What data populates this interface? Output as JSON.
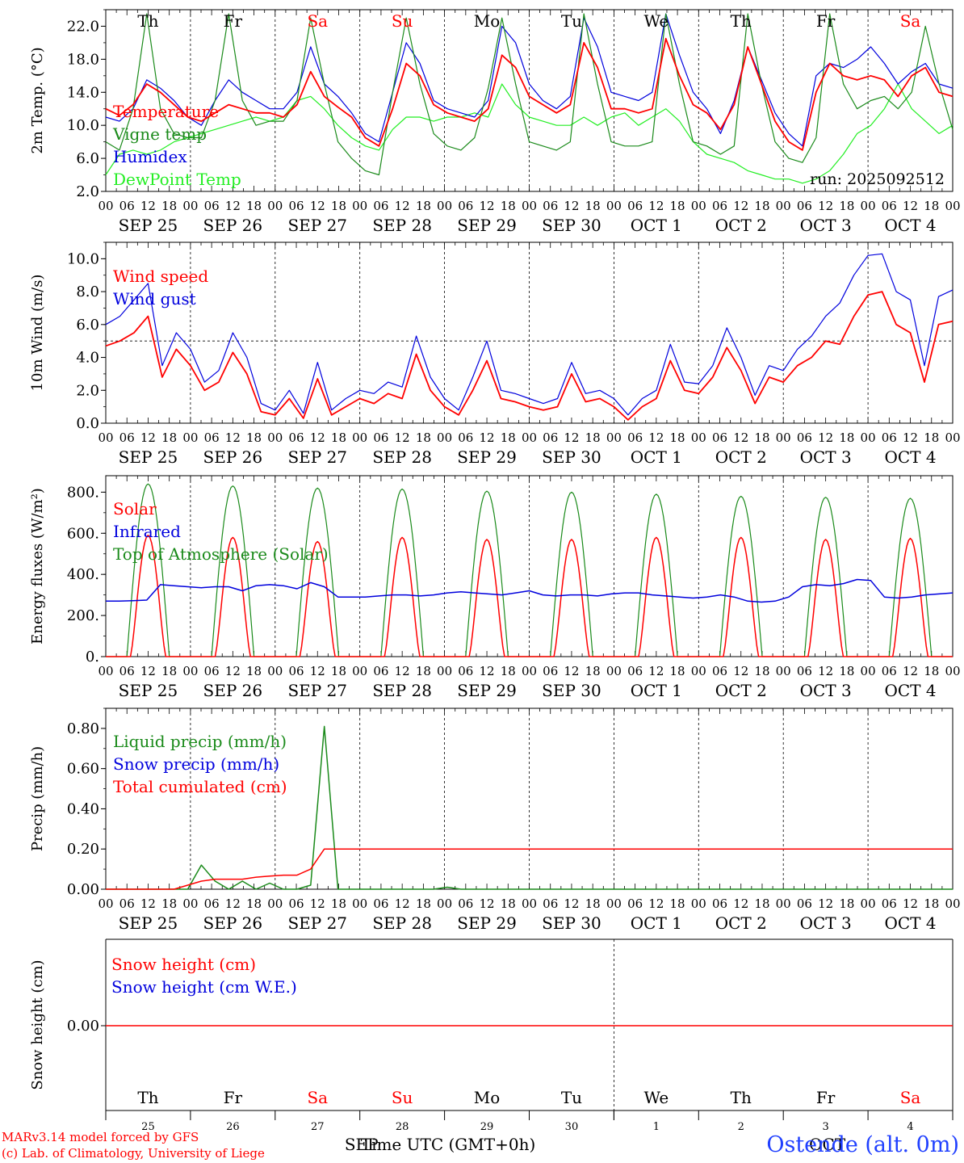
{
  "chart_data": [
    {
      "type": "line",
      "ylabel": "2m Temp. (°C)",
      "ylim": [
        2,
        24
      ],
      "yticks": [
        "2.0",
        "6.0",
        "10.0",
        "14.0",
        "18.0",
        "22.0"
      ],
      "ytick_values": [
        2,
        6,
        10,
        14,
        18,
        22
      ],
      "run_label": "run: 2025092512",
      "legend_position": "left",
      "step_hours": 6,
      "series": [
        {
          "name": "Temperature",
          "color": "#ff0000",
          "values": [
            12,
            11.2,
            12.5,
            15,
            14,
            12.5,
            11,
            10.5,
            11.5,
            12.5,
            12,
            11.5,
            11.5,
            11,
            12.5,
            16.5,
            13.5,
            12.2,
            11,
            8.5,
            7.5,
            12,
            17.5,
            16,
            12.5,
            11.5,
            11,
            10.5,
            12,
            18.5,
            17,
            13.5,
            12.5,
            11.5,
            12.5,
            20,
            17,
            12,
            12,
            11.5,
            12,
            20.5,
            16,
            12.5,
            11.5,
            9.5,
            12.5,
            19.5,
            15,
            10.5,
            8,
            7,
            14,
            17.5,
            16,
            15.5,
            16,
            15.5,
            13.5,
            16,
            17,
            14,
            13.5
          ]
        },
        {
          "name": "Vigne temp",
          "color": "#1a8a1a",
          "values": [
            8,
            7,
            12,
            23.5,
            12,
            9,
            8.5,
            8.5,
            13,
            23.5,
            13,
            10,
            10.5,
            10.5,
            13,
            23,
            15,
            8,
            6,
            4.5,
            4,
            14,
            23,
            15,
            9,
            7.5,
            7,
            8.5,
            14.5,
            23,
            15,
            8,
            7.5,
            7,
            8,
            23.5,
            15,
            8,
            7.5,
            7.5,
            8,
            23.5,
            15,
            8,
            7.5,
            6.5,
            7.5,
            23.5,
            15,
            8,
            6,
            5.5,
            8.5,
            23.5,
            15,
            12,
            13,
            13.5,
            12,
            14,
            22,
            15,
            9.5
          ]
        },
        {
          "name": "Humidex",
          "color": "#0000dd",
          "values": [
            11,
            10.5,
            12,
            15.5,
            14.5,
            13,
            11,
            10,
            13,
            15.5,
            14,
            13,
            12,
            12,
            14,
            19.5,
            15,
            13.5,
            11.5,
            9,
            8,
            14,
            20,
            17.5,
            13,
            12,
            11.5,
            11,
            13,
            22,
            20,
            15,
            13,
            12,
            13.5,
            23,
            19.5,
            14,
            13.5,
            13,
            14,
            23.5,
            18.5,
            14,
            12,
            9,
            13,
            19.5,
            15.5,
            11.5,
            9,
            7.5,
            16,
            17.5,
            17,
            18,
            19.5,
            17.5,
            15,
            16.5,
            17.5,
            15,
            14.5
          ]
        },
        {
          "name": "DewPoint Temp",
          "color": "#22ee22",
          "values": [
            4,
            6.5,
            7,
            6.5,
            7,
            8,
            8.5,
            9,
            9.5,
            10,
            10.5,
            11,
            10.5,
            11,
            13,
            13.5,
            12,
            10,
            8.5,
            7.5,
            7,
            9.5,
            11,
            11,
            10.5,
            11,
            11,
            11.5,
            11,
            15,
            12.5,
            11,
            10.5,
            10,
            10,
            11,
            10,
            11,
            11.5,
            10,
            11,
            12,
            10.5,
            8,
            6.5,
            6,
            5.5,
            4.5,
            4,
            3.5,
            3.5,
            3,
            3.5,
            4.5,
            6.5,
            9,
            10,
            12,
            15,
            12,
            10.5,
            9,
            10
          ]
        }
      ]
    },
    {
      "type": "line",
      "ylabel": "10m Wind (m/s)",
      "ylim": [
        0,
        11
      ],
      "yticks": [
        "0.0",
        "2.0",
        "4.0",
        "6.0",
        "8.0",
        "10.0"
      ],
      "ytick_values": [
        0,
        2,
        4,
        6,
        8,
        10
      ],
      "reference_line": 5,
      "legend_position": "left",
      "step_hours": 6,
      "series": [
        {
          "name": "Wind speed",
          "color": "#ff0000",
          "values": [
            4.7,
            5,
            5.5,
            6.5,
            2.8,
            4.5,
            3.5,
            2,
            2.5,
            4.3,
            3,
            0.7,
            0.5,
            1.5,
            0.3,
            2.7,
            0.5,
            1,
            1.5,
            1.2,
            1.8,
            1.5,
            4.2,
            2,
            1,
            0.5,
            2,
            3.8,
            1.5,
            1.3,
            1,
            0.8,
            1,
            3,
            1.3,
            1.5,
            1,
            0.2,
            1,
            1.5,
            3.8,
            2,
            1.8,
            2.8,
            4.6,
            3.2,
            1.2,
            2.8,
            2.5,
            3.5,
            4,
            5,
            4.8,
            6.5,
            7.8,
            8,
            6,
            5.5,
            2.5,
            6,
            6.2
          ]
        },
        {
          "name": "Wind gust",
          "color": "#0000dd",
          "values": [
            6,
            6.5,
            7.5,
            8.5,
            3.5,
            5.5,
            4.5,
            2.5,
            3.2,
            5.5,
            4,
            1.2,
            0.8,
            2,
            0.6,
            3.7,
            0.8,
            1.5,
            2,
            1.8,
            2.5,
            2.2,
            5.3,
            2.8,
            1.5,
            0.8,
            2.8,
            5,
            2,
            1.8,
            1.5,
            1.2,
            1.5,
            3.7,
            1.8,
            2,
            1.5,
            0.5,
            1.5,
            2,
            4.8,
            2.5,
            2.4,
            3.5,
            5.8,
            4,
            1.7,
            3.5,
            3.2,
            4.5,
            5.3,
            6.5,
            7.3,
            9,
            10.2,
            10.3,
            8,
            7.5,
            3.5,
            7.7,
            8.1
          ]
        }
      ]
    },
    {
      "type": "line",
      "ylabel": "Energy fluxes (W/m²)",
      "ylim": [
        0,
        880
      ],
      "yticks": [
        "0.",
        "200.",
        "400.",
        "600.",
        "800."
      ],
      "ytick_values": [
        0,
        200,
        400,
        600,
        800
      ],
      "legend_position": "left",
      "peaks": {
        "Solar": [
          590,
          580,
          560,
          580,
          570,
          570,
          580,
          580,
          570,
          575
        ],
        "Top of Atmosphere (Solar)": [
          840,
          830,
          820,
          815,
          805,
          800,
          790,
          780,
          775,
          770
        ]
      },
      "series": [
        {
          "name": "Solar",
          "color": "#ff0000"
        },
        {
          "name": "Infrared",
          "color": "#0000dd",
          "values": [
            270,
            270,
            272,
            275,
            350,
            345,
            340,
            335,
            340,
            340,
            320,
            345,
            350,
            345,
            330,
            360,
            340,
            290,
            290,
            290,
            295,
            300,
            300,
            295,
            300,
            310,
            315,
            310,
            305,
            300,
            310,
            320,
            300,
            295,
            300,
            300,
            295,
            305,
            310,
            310,
            300,
            295,
            290,
            285,
            290,
            300,
            290,
            270,
            265,
            270,
            290,
            340,
            350,
            345,
            355,
            375,
            370,
            290,
            285,
            290,
            300,
            305,
            310
          ]
        },
        {
          "name": "Top of Atmosphere (Solar)",
          "color": "#1a8a1a"
        }
      ]
    },
    {
      "type": "line",
      "ylabel": "Precip (mm/h)",
      "ylim": [
        0,
        0.9
      ],
      "yticks": [
        "0.00",
        "0.20",
        "0.40",
        "0.60",
        "0.80"
      ],
      "ytick_values": [
        0,
        0.2,
        0.4,
        0.6,
        0.8
      ],
      "legend_position": "left",
      "series": [
        {
          "name": "Liquid precip (mm/h)",
          "color": "#1a8a1a",
          "values": [
            0,
            0,
            0,
            0,
            0,
            0,
            0,
            0.12,
            0.04,
            0,
            0.04,
            0,
            0.03,
            0,
            0,
            0.02,
            0.81,
            0,
            0,
            0,
            0,
            0,
            0,
            0,
            0,
            0.01,
            0,
            0,
            0,
            0,
            0,
            0,
            0,
            0,
            0,
            0,
            0,
            0,
            0,
            0,
            0,
            0,
            0,
            0,
            0,
            0,
            0,
            0,
            0,
            0,
            0,
            0,
            0,
            0,
            0,
            0,
            0,
            0,
            0,
            0,
            0,
            0,
            0
          ]
        },
        {
          "name": "Snow precip (mm/h)",
          "color": "#0000dd",
          "values": [
            0
          ]
        },
        {
          "name": "Total cumulated (cm)",
          "color": "#ff0000",
          "values": [
            0,
            0,
            0,
            0,
            0,
            0,
            0.02,
            0.04,
            0.05,
            0.05,
            0.05,
            0.06,
            0.065,
            0.07,
            0.07,
            0.1,
            0.2,
            0.2,
            0.2,
            0.2,
            0.2,
            0.2,
            0.2,
            0.2,
            0.2,
            0.2,
            0.2,
            0.2,
            0.2,
            0.2,
            0.2,
            0.2,
            0.2,
            0.2,
            0.2,
            0.2,
            0.2,
            0.2,
            0.2,
            0.2,
            0.2,
            0.2,
            0.2,
            0.2,
            0.2,
            0.2,
            0.2,
            0.2,
            0.2,
            0.2,
            0.2,
            0.2,
            0.2,
            0.2,
            0.2,
            0.2,
            0.2,
            0.2,
            0.2,
            0.2,
            0.2,
            0.2,
            0.2
          ]
        }
      ]
    },
    {
      "type": "line",
      "ylabel": "Snow height (cm)",
      "yticks": [
        "0.00"
      ],
      "ytick_values": [
        0
      ],
      "legend_position": "left",
      "series": [
        {
          "name": "Snow height (cm)",
          "color": "#ff0000",
          "values": [
            0,
            0
          ]
        },
        {
          "name": "Snow height (cm W.E.)",
          "color": "#0000dd",
          "values": [
            0,
            0
          ]
        }
      ]
    }
  ],
  "x_axis": {
    "hour_ticks": [
      "00",
      "06",
      "12",
      "18"
    ],
    "final_tick": "00",
    "dates": [
      "SEP 25",
      "SEP 26",
      "SEP 27",
      "SEP 28",
      "SEP 29",
      "SEP 30",
      "OCT  1",
      "OCT  2",
      "OCT  3",
      "OCT  4"
    ],
    "weekdays": [
      "Th",
      "Fr",
      "Sa",
      "Su",
      "Mo",
      "Tu",
      "We",
      "Th",
      "Fr",
      "Sa"
    ],
    "weekday_colors": [
      "#000000",
      "#000000",
      "#ff0000",
      "#ff0000",
      "#000000",
      "#000000",
      "#000000",
      "#000000",
      "#000000",
      "#ff0000"
    ],
    "day_numbers": [
      "25",
      "26",
      "27",
      "28",
      "29",
      "30",
      "1",
      "2",
      "3",
      "4"
    ],
    "month_labels": [
      "SEP",
      "OCT"
    ],
    "xlabel": "Time UTC (GMT+0h)"
  },
  "footer": {
    "model": "MARv3.14 model forced by GFS",
    "credit": "(c) Lab. of Climatology, University of Liege",
    "station": "Ostende (alt. 0m)"
  }
}
